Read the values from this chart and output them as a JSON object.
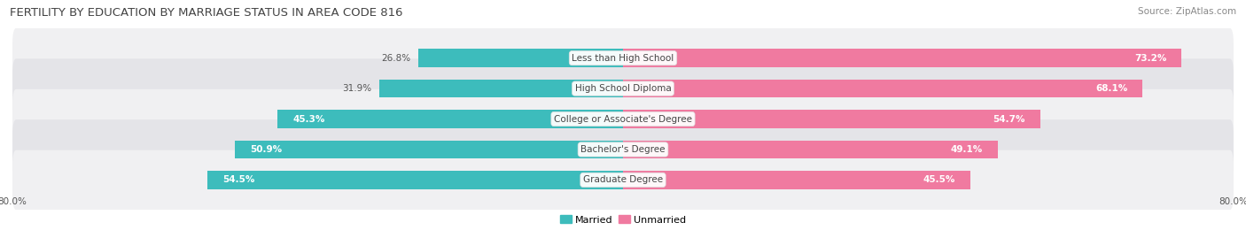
{
  "title": "FERTILITY BY EDUCATION BY MARRIAGE STATUS IN AREA CODE 816",
  "source": "Source: ZipAtlas.com",
  "categories": [
    "Less than High School",
    "High School Diploma",
    "College or Associate's Degree",
    "Bachelor's Degree",
    "Graduate Degree"
  ],
  "married": [
    26.8,
    31.9,
    45.3,
    50.9,
    54.5
  ],
  "unmarried": [
    73.2,
    68.1,
    54.7,
    49.1,
    45.5
  ],
  "married_color": "#3dbcbc",
  "unmarried_color": "#f07aa0",
  "row_bg_color_odd": "#f0f0f2",
  "row_bg_color_even": "#e4e4e8",
  "axis_min": -80.0,
  "axis_max": 80.0,
  "title_fontsize": 9.5,
  "source_fontsize": 7.5,
  "label_fontsize": 7.5,
  "value_fontsize": 7.5,
  "legend_fontsize": 8,
  "axis_label_fontsize": 7.5,
  "bar_height": 0.6,
  "inside_threshold": 45.0
}
